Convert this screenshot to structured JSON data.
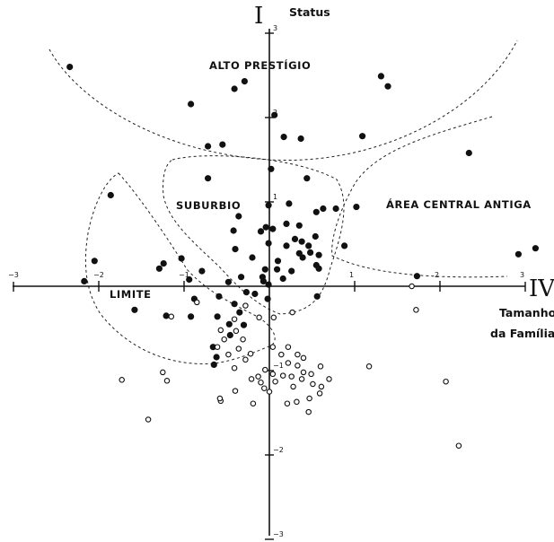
{
  "chart_data": {
    "type": "scatter",
    "title": "",
    "y_axis": {
      "numeral": "I",
      "label": "Status",
      "range": [
        -3,
        3
      ],
      "ticks": [
        -3,
        -2,
        -1,
        1,
        2,
        3
      ]
    },
    "x_axis": {
      "numeral": "IV",
      "label_lines": [
        "Tamanho",
        "da Família"
      ],
      "range": [
        -3,
        3
      ],
      "ticks": [
        -3,
        -2,
        -1,
        1,
        2,
        3
      ]
    },
    "regions": [
      {
        "label": "ALTO PRESTÍGIO"
      },
      {
        "label": "SUBURBIO"
      },
      {
        "label": "ÁREA CENTRAL ANTIGA"
      },
      {
        "label": "LIMITE"
      }
    ],
    "series": [
      {
        "marker": "filled",
        "points": [
          [
            -2.34,
            2.6
          ],
          [
            -0.29,
            2.43
          ],
          [
            -0.41,
            2.34
          ],
          [
            -0.92,
            2.16
          ],
          [
            1.31,
            2.49
          ],
          [
            1.39,
            2.37
          ],
          [
            0.06,
            2.03
          ],
          [
            1.09,
            1.78
          ],
          [
            0.17,
            1.77
          ],
          [
            0.37,
            1.75
          ],
          [
            -0.72,
            1.66
          ],
          [
            -0.55,
            1.68
          ],
          [
            2.34,
            1.58
          ],
          [
            0.02,
            1.39
          ],
          [
            -0.72,
            1.28
          ],
          [
            0.44,
            1.28
          ],
          [
            -1.86,
            1.08
          ],
          [
            -0.01,
            0.96
          ],
          [
            0.23,
            0.98
          ],
          [
            1.02,
            0.94
          ],
          [
            0.63,
            0.92
          ],
          [
            0.78,
            0.92
          ],
          [
            0.55,
            0.88
          ],
          [
            -0.36,
            0.83
          ],
          [
            0.2,
            0.74
          ],
          [
            0.35,
            0.72
          ],
          [
            -0.04,
            0.7
          ],
          [
            0.04,
            0.68
          ],
          [
            -0.42,
            0.66
          ],
          [
            -0.1,
            0.65
          ],
          [
            0.54,
            0.59
          ],
          [
            0.3,
            0.56
          ],
          [
            0.38,
            0.53
          ],
          [
            -0.01,
            0.51
          ],
          [
            0.2,
            0.48
          ],
          [
            0.46,
            0.48
          ],
          [
            0.88,
            0.48
          ],
          [
            -0.4,
            0.44
          ],
          [
            0.35,
            0.39
          ],
          [
            0.48,
            0.4
          ],
          [
            0.58,
            0.37
          ],
          [
            -0.2,
            0.34
          ],
          [
            -1.03,
            0.33
          ],
          [
            0.1,
            0.3
          ],
          [
            0.39,
            0.34
          ],
          [
            -2.05,
            0.3
          ],
          [
            -1.24,
            0.27
          ],
          [
            -1.29,
            0.21
          ],
          [
            -0.05,
            0.2
          ],
          [
            0.09,
            0.2
          ],
          [
            0.58,
            0.21
          ],
          [
            -0.79,
            0.18
          ],
          [
            -0.08,
            0.11
          ],
          [
            0.26,
            0.18
          ],
          [
            0.55,
            0.25
          ],
          [
            -0.33,
            0.11
          ],
          [
            -0.07,
            0.06
          ],
          [
            0.16,
            0.09
          ],
          [
            -2.17,
            0.06
          ],
          [
            -0.94,
            0.08
          ],
          [
            -0.48,
            0.05
          ],
          [
            -0.01,
            0.02
          ],
          [
            -0.88,
            -0.15
          ],
          [
            -0.59,
            -0.12
          ],
          [
            0.56,
            -0.12
          ],
          [
            -0.27,
            -0.07
          ],
          [
            -0.17,
            -0.09
          ],
          [
            -0.02,
            -0.15
          ],
          [
            -0.41,
            -0.21
          ],
          [
            1.73,
            0.12
          ],
          [
            2.92,
            0.38
          ],
          [
            3.12,
            0.45
          ],
          [
            -1.58,
            -0.28
          ],
          [
            -1.21,
            -0.35
          ],
          [
            -0.92,
            -0.36
          ],
          [
            -0.61,
            -0.36
          ],
          [
            -0.35,
            -0.31
          ],
          [
            -0.47,
            -0.45
          ],
          [
            -0.3,
            -0.46
          ],
          [
            -0.46,
            -0.58
          ],
          [
            -0.66,
            -0.72
          ],
          [
            -0.62,
            -0.84
          ],
          [
            -0.65,
            -0.93
          ]
        ]
      },
      {
        "marker": "open",
        "points": [
          [
            -0.85,
            -0.19
          ],
          [
            -0.28,
            -0.23
          ],
          [
            1.72,
            -0.28
          ],
          [
            0.27,
            -0.31
          ],
          [
            -1.15,
            -0.36
          ],
          [
            -0.12,
            -0.37
          ],
          [
            0.05,
            -0.37
          ],
          [
            -0.41,
            -0.39
          ],
          [
            -0.57,
            -0.52
          ],
          [
            -0.39,
            -0.53
          ],
          [
            -0.53,
            -0.63
          ],
          [
            -0.31,
            -0.63
          ],
          [
            -0.61,
            -0.72
          ],
          [
            -0.36,
            -0.74
          ],
          [
            0.22,
            -0.72
          ],
          [
            0.04,
            -0.72
          ],
          [
            -0.22,
            -0.8
          ],
          [
            -0.48,
            -0.81
          ],
          [
            0.14,
            -0.81
          ],
          [
            0.33,
            -0.81
          ],
          [
            0.4,
            -0.85
          ],
          [
            -0.28,
            -0.87
          ],
          [
            0.22,
            -0.91
          ],
          [
            0.33,
            -0.94
          ],
          [
            -0.41,
            -0.97
          ],
          [
            -0.05,
            -0.99
          ],
          [
            0.4,
            -1.02
          ],
          [
            0.49,
            -1.04
          ],
          [
            0.6,
            -0.95
          ],
          [
            0.04,
            -1.04
          ],
          [
            1.17,
            -0.95
          ],
          [
            -0.13,
            -1.07
          ],
          [
            0.16,
            -1.06
          ],
          [
            0.26,
            -1.07
          ],
          [
            0.38,
            -1.1
          ],
          [
            0.7,
            -1.1
          ],
          [
            -0.21,
            -1.1
          ],
          [
            -0.1,
            -1.14
          ],
          [
            0.07,
            -1.13
          ],
          [
            0.51,
            -1.16
          ],
          [
            0.61,
            -1.19
          ],
          [
            -1.25,
            -1.02
          ],
          [
            -1.2,
            -1.12
          ],
          [
            -1.73,
            -1.11
          ],
          [
            -0.06,
            -1.21
          ],
          [
            0.28,
            -1.19
          ],
          [
            -0.4,
            -1.24
          ],
          [
            0.0,
            -1.25
          ],
          [
            0.59,
            -1.27
          ],
          [
            -0.57,
            -1.36
          ],
          [
            0.47,
            -1.33
          ],
          [
            0.32,
            -1.37
          ],
          [
            0.21,
            -1.39
          ],
          [
            -0.19,
            -1.39
          ],
          [
            -0.58,
            -1.33
          ],
          [
            0.46,
            -1.49
          ],
          [
            -1.42,
            -1.58
          ],
          [
            2.07,
            -1.13
          ],
          [
            2.22,
            -1.89
          ],
          [
            1.67,
            0.0
          ]
        ]
      }
    ]
  }
}
